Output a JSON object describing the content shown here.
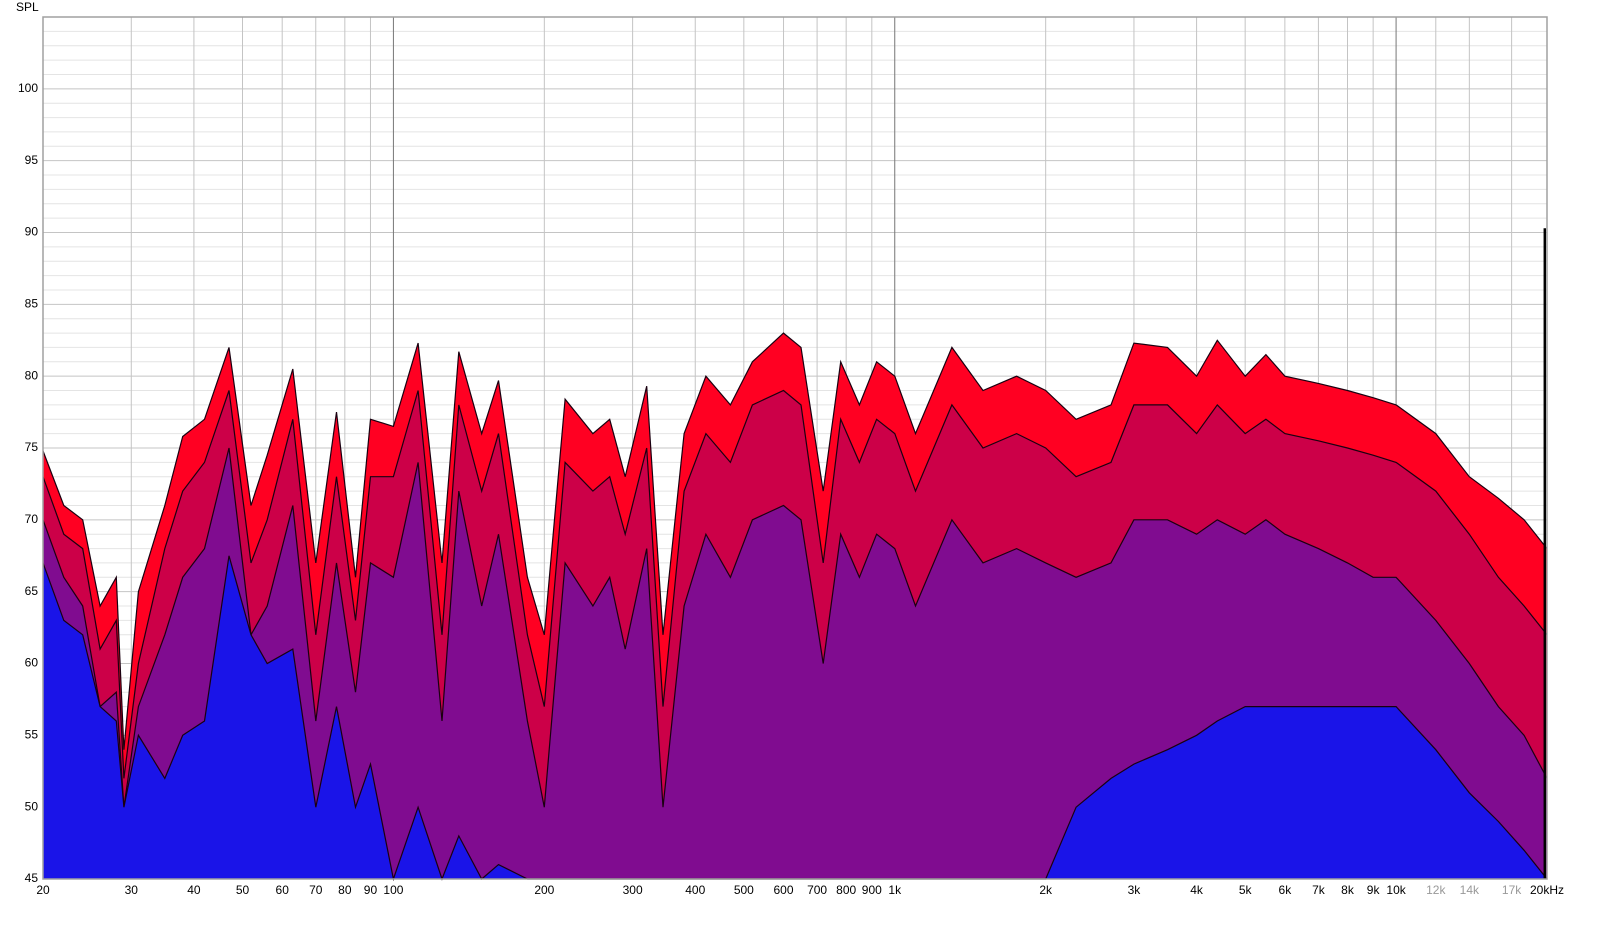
{
  "chart_data": {
    "type": "waterfall",
    "y_label": "SPL",
    "log_x": true,
    "grid": true,
    "xlim": [
      20,
      20000
    ],
    "ylim": [
      45,
      105
    ],
    "yticks": [
      45,
      50,
      55,
      60,
      65,
      70,
      75,
      80,
      85,
      90,
      95,
      100
    ],
    "yticks_minor": [
      46,
      47,
      48,
      49,
      51,
      52,
      53,
      54,
      56,
      57,
      58,
      59,
      61,
      62,
      63,
      64,
      66,
      67,
      68,
      69,
      71,
      72,
      73,
      74,
      76,
      77,
      78,
      79,
      81,
      82,
      83,
      84,
      86,
      87,
      88,
      89,
      91,
      92,
      93,
      94,
      96,
      97,
      98,
      99,
      101,
      102,
      103,
      104
    ],
    "xticks": [
      20,
      30,
      40,
      50,
      60,
      70,
      80,
      90,
      100,
      200,
      300,
      400,
      500,
      600,
      700,
      800,
      900,
      {
        "value": 1000,
        "label": "1k"
      },
      {
        "value": 2000,
        "label": "2k"
      },
      {
        "value": 3000,
        "label": "3k"
      },
      {
        "value": 4000,
        "label": "4k"
      },
      {
        "value": 5000,
        "label": "5k"
      },
      {
        "value": 6000,
        "label": "6k"
      },
      {
        "value": 7000,
        "label": "7k"
      },
      {
        "value": 8000,
        "label": "8k"
      },
      {
        "value": 9000,
        "label": "9k"
      },
      {
        "value": 10000,
        "label": "10k"
      },
      {
        "value": 20000,
        "label": "20kHz"
      }
    ],
    "xticks_faint": [
      {
        "value": 12000,
        "label": "12k"
      },
      {
        "value": 14000,
        "label": "14k"
      },
      {
        "value": 17000,
        "label": "17k"
      }
    ],
    "x": [
      20,
      22,
      24,
      26,
      28,
      29,
      31,
      35,
      38,
      42,
      47,
      52,
      56,
      63,
      70,
      77,
      84,
      90,
      100,
      112,
      125,
      135,
      150,
      162,
      185,
      200,
      220,
      250,
      270,
      290,
      320,
      345,
      380,
      420,
      470,
      520,
      600,
      650,
      720,
      780,
      850,
      920,
      1000,
      1100,
      1300,
      1500,
      1750,
      2000,
      2300,
      2700,
      3000,
      3500,
      4000,
      4400,
      5000,
      5500,
      6000,
      7000,
      8000,
      9000,
      10000,
      12000,
      14000,
      16000,
      18000,
      20000
    ],
    "series": [
      {
        "color": "#ff0022",
        "values": [
          74.8,
          71,
          70,
          64,
          66,
          54,
          65,
          71,
          75.8,
          77,
          82,
          71,
          74.5,
          80.5,
          67,
          77.5,
          66,
          77,
          76.5,
          82.3,
          67,
          81.7,
          76,
          79.7,
          66,
          62,
          78.4,
          76,
          77,
          73,
          79.3,
          62,
          76,
          80,
          78,
          81,
          83,
          82,
          72,
          81,
          78,
          81,
          80,
          76,
          82,
          79,
          80,
          79,
          77,
          78,
          82.3,
          82,
          80,
          82.5,
          80,
          81.5,
          80,
          79.5,
          79,
          78.5,
          78,
          76,
          73,
          71.5,
          70,
          68
        ]
      },
      {
        "color": "#cc0048",
        "values": [
          73,
          69,
          68,
          61,
          63,
          52,
          60,
          68,
          72,
          74,
          79,
          67,
          70,
          77,
          62,
          73,
          63,
          73,
          73,
          79,
          62,
          78,
          72,
          76,
          62,
          57,
          74,
          72,
          73,
          69,
          75,
          57,
          72,
          76,
          74,
          78,
          79,
          78,
          67,
          77,
          74,
          77,
          76,
          72,
          78,
          75,
          76,
          75,
          73,
          74,
          78,
          78,
          76,
          78,
          76,
          77,
          76,
          75.5,
          75,
          74.5,
          74,
          72,
          69,
          66,
          64,
          62
        ]
      },
      {
        "color": "#800c90",
        "values": [
          70,
          66,
          64,
          57,
          58,
          50,
          57,
          62,
          66,
          68,
          75,
          62,
          64,
          71,
          56,
          67,
          58,
          67,
          66,
          74,
          56,
          72,
          64,
          69,
          56,
          50,
          67,
          64,
          66,
          61,
          68,
          50,
          64,
          69,
          66,
          70,
          71,
          70,
          60,
          69,
          66,
          69,
          68,
          64,
          70,
          67,
          68,
          67,
          66,
          67,
          70,
          70,
          69,
          70,
          69,
          70,
          69,
          68,
          67,
          66,
          66,
          63,
          60,
          57,
          55,
          52
        ]
      },
      {
        "color": "#1a14e8",
        "values": [
          67,
          63,
          62,
          57,
          56,
          50,
          55,
          52,
          55,
          56,
          67.5,
          62,
          60,
          61,
          50,
          57,
          50,
          53,
          45,
          50,
          45,
          48,
          45,
          46,
          45,
          45,
          45,
          45,
          45,
          45,
          45,
          45,
          45,
          45,
          45,
          45,
          45,
          45,
          45,
          45,
          45,
          45,
          45,
          45,
          45,
          45,
          45,
          45,
          50,
          52,
          53,
          54,
          55,
          56,
          57,
          57,
          57,
          57,
          57,
          57,
          57,
          54,
          51,
          49,
          47,
          45
        ]
      }
    ],
    "marker": {
      "x": 19800,
      "y": 90.3
    }
  }
}
